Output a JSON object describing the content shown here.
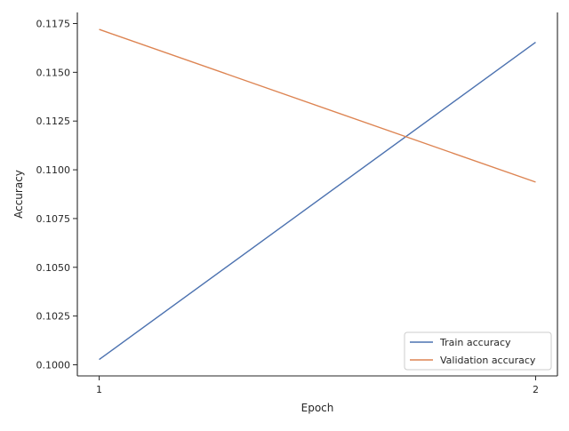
{
  "chart_data": {
    "type": "line",
    "title": "",
    "xlabel": "Epoch",
    "ylabel": "Accuracy",
    "x": [
      1,
      2
    ],
    "xticks": [
      "1",
      "2"
    ],
    "xlim": [
      0.95,
      2.05
    ],
    "ylim": [
      0.09943,
      0.11807
    ],
    "yticks": [
      0.1,
      0.1025,
      0.105,
      0.1075,
      0.11,
      0.1125,
      0.115,
      0.1175
    ],
    "ytick_labels": [
      "0.1000",
      "0.1025",
      "0.1050",
      "0.1075",
      "0.1100",
      "0.1125",
      "0.1150",
      "0.1175"
    ],
    "grid": false,
    "legend_position": "bottom-right",
    "series": [
      {
        "name": "Train accuracy",
        "values": [
          0.10027,
          0.11654
        ],
        "color": "#4c72b0"
      },
      {
        "name": "Validation accuracy",
        "values": [
          0.1172,
          0.10937
        ],
        "color": "#dd8452"
      }
    ]
  }
}
